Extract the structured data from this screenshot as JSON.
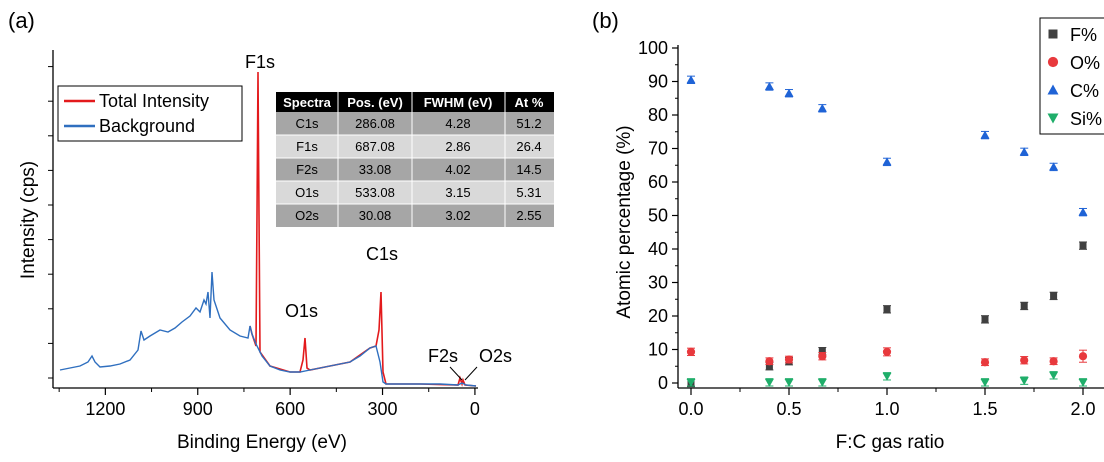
{
  "chart_data": [
    {
      "panel": "(a)",
      "type": "line",
      "xlabel": "Binding Energy (eV)",
      "ylabel": "Intensity (cps)",
      "xlim": [
        1370,
        -10
      ],
      "x_reversed": true,
      "x_ticks": [
        "1200",
        "900",
        "600",
        "300",
        "0"
      ],
      "x_tick_values": [
        1200,
        900,
        600,
        300,
        0
      ],
      "y_ticks_labeled": false,
      "series": [
        {
          "name": "Total Intensity",
          "color": "#e31a1c"
        },
        {
          "name": "Background",
          "color": "#2f6fbf"
        }
      ],
      "peak_labels": [
        {
          "text": "F1s",
          "x": 687.08
        },
        {
          "text": "O1s",
          "x": 533.08
        },
        {
          "text": "C1s",
          "x": 286.08
        },
        {
          "text": "F2s",
          "x": 33.08
        },
        {
          "text": "O2s",
          "x": 30.08
        }
      ],
      "table": {
        "columns": [
          "Spectra",
          "Pos. (eV)",
          "FWHM (eV)",
          "At %"
        ],
        "rows": [
          [
            "C1s",
            "286.08",
            "4.28",
            "51.2"
          ],
          [
            "F1s",
            "687.08",
            "2.86",
            "26.4"
          ],
          [
            "F2s",
            "33.08",
            "4.02",
            "14.5"
          ],
          [
            "O1s",
            "533.08",
            "3.15",
            "5.31"
          ],
          [
            "O2s",
            "30.08",
            "3.02",
            "2.55"
          ]
        ]
      }
    },
    {
      "panel": "(b)",
      "type": "scatter",
      "xlabel": "F:C gas ratio",
      "ylabel": "Atomic percentage (%)",
      "xlim": [
        -0.05,
        2.1
      ],
      "ylim": [
        0,
        100
      ],
      "x_ticks": [
        "0.0",
        "0.5",
        "1.0",
        "1.5",
        "2.0"
      ],
      "x_tick_values": [
        0,
        0.5,
        1,
        1.5,
        2
      ],
      "y_ticks": [
        "0",
        "10",
        "20",
        "30",
        "40",
        "50",
        "60",
        "70",
        "80",
        "90",
        "100"
      ],
      "y_tick_values": [
        0,
        10,
        20,
        30,
        40,
        50,
        60,
        70,
        80,
        90,
        100
      ],
      "x": [
        0,
        0.4,
        0.5,
        0.67,
        1.0,
        1.5,
        1.7,
        1.85,
        2.0
      ],
      "series": [
        {
          "name": "F%",
          "marker": "square",
          "color": "#404040",
          "values": [
            0,
            5,
            6.5,
            9.5,
            22,
            19,
            23,
            26,
            41
          ]
        },
        {
          "name": "O%",
          "marker": "circle",
          "color": "#e8393d",
          "values": [
            9.3,
            6.5,
            7,
            8,
            9.3,
            6.2,
            6.8,
            6.5,
            8
          ],
          "error": [
            0.5,
            0.4,
            0.4,
            0.5,
            0.6,
            0.4,
            0.5,
            0.4,
            1.2
          ]
        },
        {
          "name": "C%",
          "marker": "triangle-up",
          "color": "#1f63d6",
          "values": [
            90.5,
            88.5,
            86.5,
            82,
            66,
            74,
            69,
            64.5,
            51
          ]
        },
        {
          "name": "Si%",
          "marker": "triangle-down",
          "color": "#1fae6a",
          "values": [
            0.2,
            0.2,
            0.2,
            0.2,
            2,
            0.2,
            0.7,
            2.3,
            0.2
          ]
        }
      ],
      "legend_position": "top-right"
    }
  ]
}
